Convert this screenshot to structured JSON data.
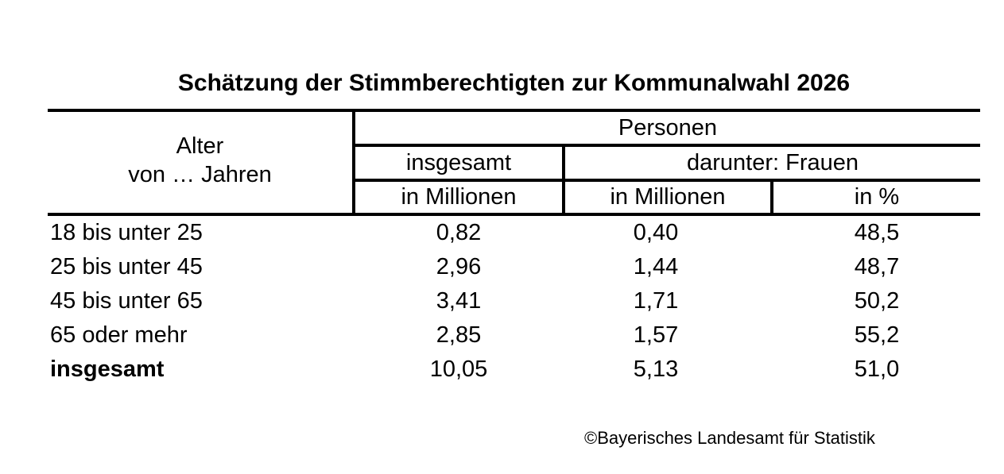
{
  "title": "Schätzung der Stimmberechtigten zur Kommunalwahl 2026",
  "table": {
    "corner_header": {
      "line1": "Alter",
      "line2": "von … Jahren"
    },
    "group_header": "Personen",
    "subgroup_headers": {
      "insgesamt": "insgesamt",
      "darunter_frauen": "darunter: Frauen"
    },
    "unit_headers": {
      "total_unit": "in Millionen",
      "women_unit": "in Millionen",
      "percent_unit": "in %"
    },
    "rows": [
      {
        "label": "18 bis unter 25",
        "total": "0,82",
        "women": "0,40",
        "percent": "48,5"
      },
      {
        "label": "25 bis unter 45",
        "total": "2,96",
        "women": "1,44",
        "percent": "48,7"
      },
      {
        "label": "45 bis unter 65",
        "total": "3,41",
        "women": "1,71",
        "percent": "50,2"
      },
      {
        "label": "65 oder mehr",
        "total": "2,85",
        "women": "1,57",
        "percent": "55,2"
      },
      {
        "label": "insgesamt",
        "total": "10,05",
        "women": "5,13",
        "percent": "51,0"
      }
    ]
  },
  "footer": {
    "copyright": "©Bayerisches Landesamt für Statistik"
  },
  "colors": {
    "text": "#000000",
    "background": "#ffffff",
    "rule": "#000000"
  },
  "chart_data": {
    "type": "table",
    "title": "Schätzung der Stimmberechtigten zur Kommunalwahl 2026",
    "columns": [
      "Alter von … Jahren",
      "Personen insgesamt (in Millionen)",
      "Personen darunter: Frauen (in Millionen)",
      "Personen darunter: Frauen (in %)"
    ],
    "rows": [
      [
        "18 bis unter 25",
        0.82,
        0.4,
        48.5
      ],
      [
        "25 bis unter 45",
        2.96,
        1.44,
        48.7
      ],
      [
        "45 bis unter 65",
        3.41,
        1.71,
        50.2
      ],
      [
        "65 oder mehr",
        2.85,
        1.57,
        55.2
      ],
      [
        "insgesamt",
        10.05,
        5.13,
        51.0
      ]
    ],
    "decimal_separator": ",",
    "source": "©Bayerisches Landesamt für Statistik"
  }
}
